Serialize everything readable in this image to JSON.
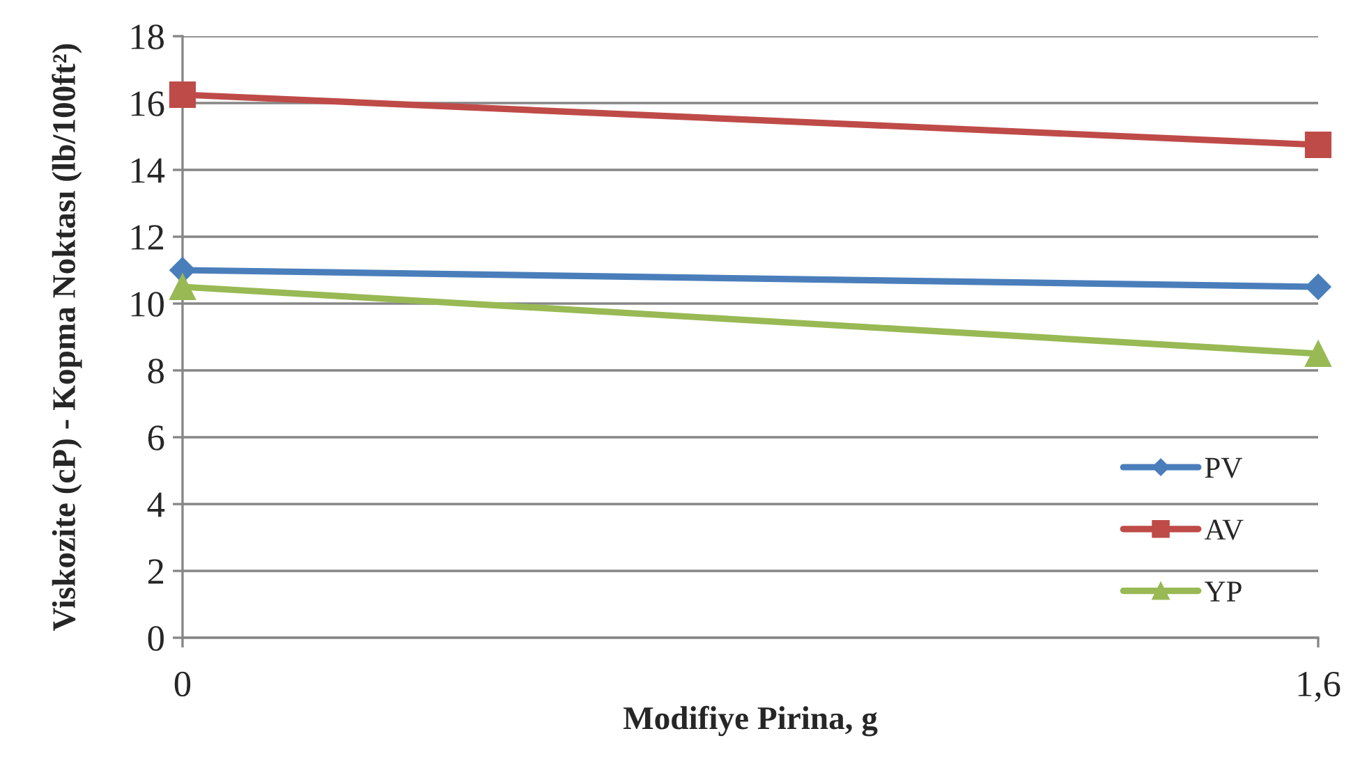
{
  "chart_data": {
    "type": "line",
    "xlabel": "Modifiye Pirina, g",
    "ylabel": "Viskozite (cP) - Kopma Noktası (lb/100ft²)",
    "x": [
      0,
      1.6
    ],
    "xlim": [
      0,
      1.6
    ],
    "xticks": [
      0,
      {
        "value": 1.6,
        "label": "1,6"
      }
    ],
    "series": [
      {
        "name": "PV",
        "color": "#4a7ebb",
        "marker": "diamond",
        "values": [
          11,
          10.5
        ]
      },
      {
        "name": "AV",
        "color": "#be4b48",
        "marker": "square",
        "values": [
          16.25,
          14.75
        ]
      },
      {
        "name": "YP",
        "color": "#98b954",
        "marker": "triangle",
        "values": [
          10.5,
          8.5
        ]
      }
    ],
    "ylim": [
      0,
      18
    ],
    "yticks": [
      0,
      2,
      4,
      6,
      8,
      10,
      12,
      14,
      16,
      18
    ],
    "grid": "y",
    "legend": "bottom right",
    "line_style": "solid"
  }
}
